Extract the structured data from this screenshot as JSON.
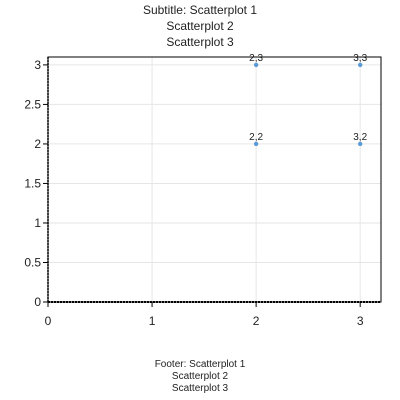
{
  "subtitle": {
    "lines": [
      "Subtitle: Scatterplot 1",
      "Scatterplot 2",
      "Scatterplot 3"
    ]
  },
  "footer": {
    "lines": [
      "Footer: Scatterplot 1",
      "Scatterplot 2",
      "Scatterplot 3"
    ]
  },
  "chart_data": {
    "type": "scatter",
    "title": "",
    "xlabel": "",
    "ylabel": "",
    "xlim": [
      0,
      3.2
    ],
    "ylim": [
      0,
      3.1
    ],
    "x_ticks": [
      "0",
      "1",
      "2",
      "3"
    ],
    "y_ticks": [
      "0",
      "0.5",
      "1",
      "1.5",
      "2",
      "2.5",
      "3"
    ],
    "grid": true,
    "point_color": "#5b9bd5",
    "points": [
      {
        "x": 2,
        "y": 3,
        "label": "2,3"
      },
      {
        "x": 3,
        "y": 3,
        "label": "3,3"
      },
      {
        "x": 2,
        "y": 2,
        "label": "2,2"
      },
      {
        "x": 3,
        "y": 2,
        "label": "3,2"
      }
    ]
  }
}
